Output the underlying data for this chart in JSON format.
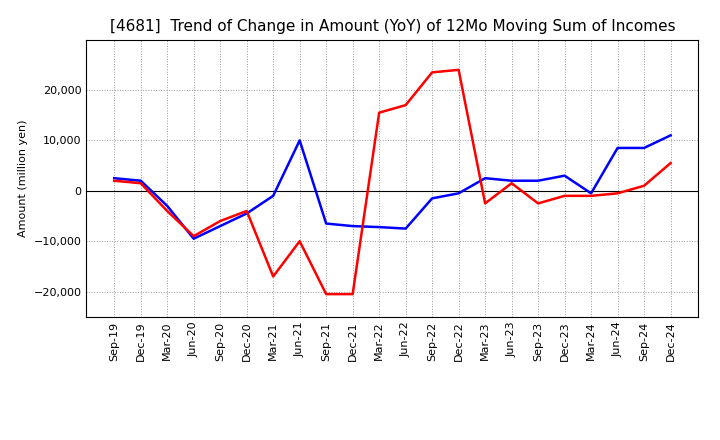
{
  "title": "[4681]  Trend of Change in Amount (YoY) of 12Mo Moving Sum of Incomes",
  "ylabel": "Amount (million yen)",
  "x_labels": [
    "Sep-19",
    "Dec-19",
    "Mar-20",
    "Jun-20",
    "Sep-20",
    "Dec-20",
    "Mar-21",
    "Jun-21",
    "Sep-21",
    "Dec-21",
    "Mar-22",
    "Jun-22",
    "Sep-22",
    "Dec-22",
    "Mar-23",
    "Jun-23",
    "Sep-23",
    "Dec-23",
    "Mar-24",
    "Jun-24",
    "Sep-24",
    "Dec-24"
  ],
  "ordinary_income": [
    2500,
    2000,
    -3000,
    -9500,
    -7000,
    -4500,
    -1000,
    10000,
    -6500,
    -7000,
    -7200,
    -7500,
    -1500,
    -500,
    2500,
    2000,
    2000,
    3000,
    -500,
    8500,
    8500,
    11000
  ],
  "net_income": [
    2000,
    1500,
    -4000,
    -9000,
    -6000,
    -4000,
    -17000,
    -10000,
    -20500,
    -20500,
    15500,
    17000,
    23500,
    24000,
    -2500,
    1500,
    -2500,
    -1000,
    -1000,
    -500,
    1000,
    5500
  ],
  "ordinary_color": "#0000FF",
  "net_color": "#FF0000",
  "ylim": [
    -25000,
    30000
  ],
  "yticks": [
    -20000,
    -10000,
    0,
    10000,
    20000
  ],
  "background_color": "#FFFFFF",
  "grid_color": "#999999",
  "line_width": 1.8,
  "title_fontsize": 11,
  "axis_fontsize": 8,
  "ylabel_fontsize": 8
}
